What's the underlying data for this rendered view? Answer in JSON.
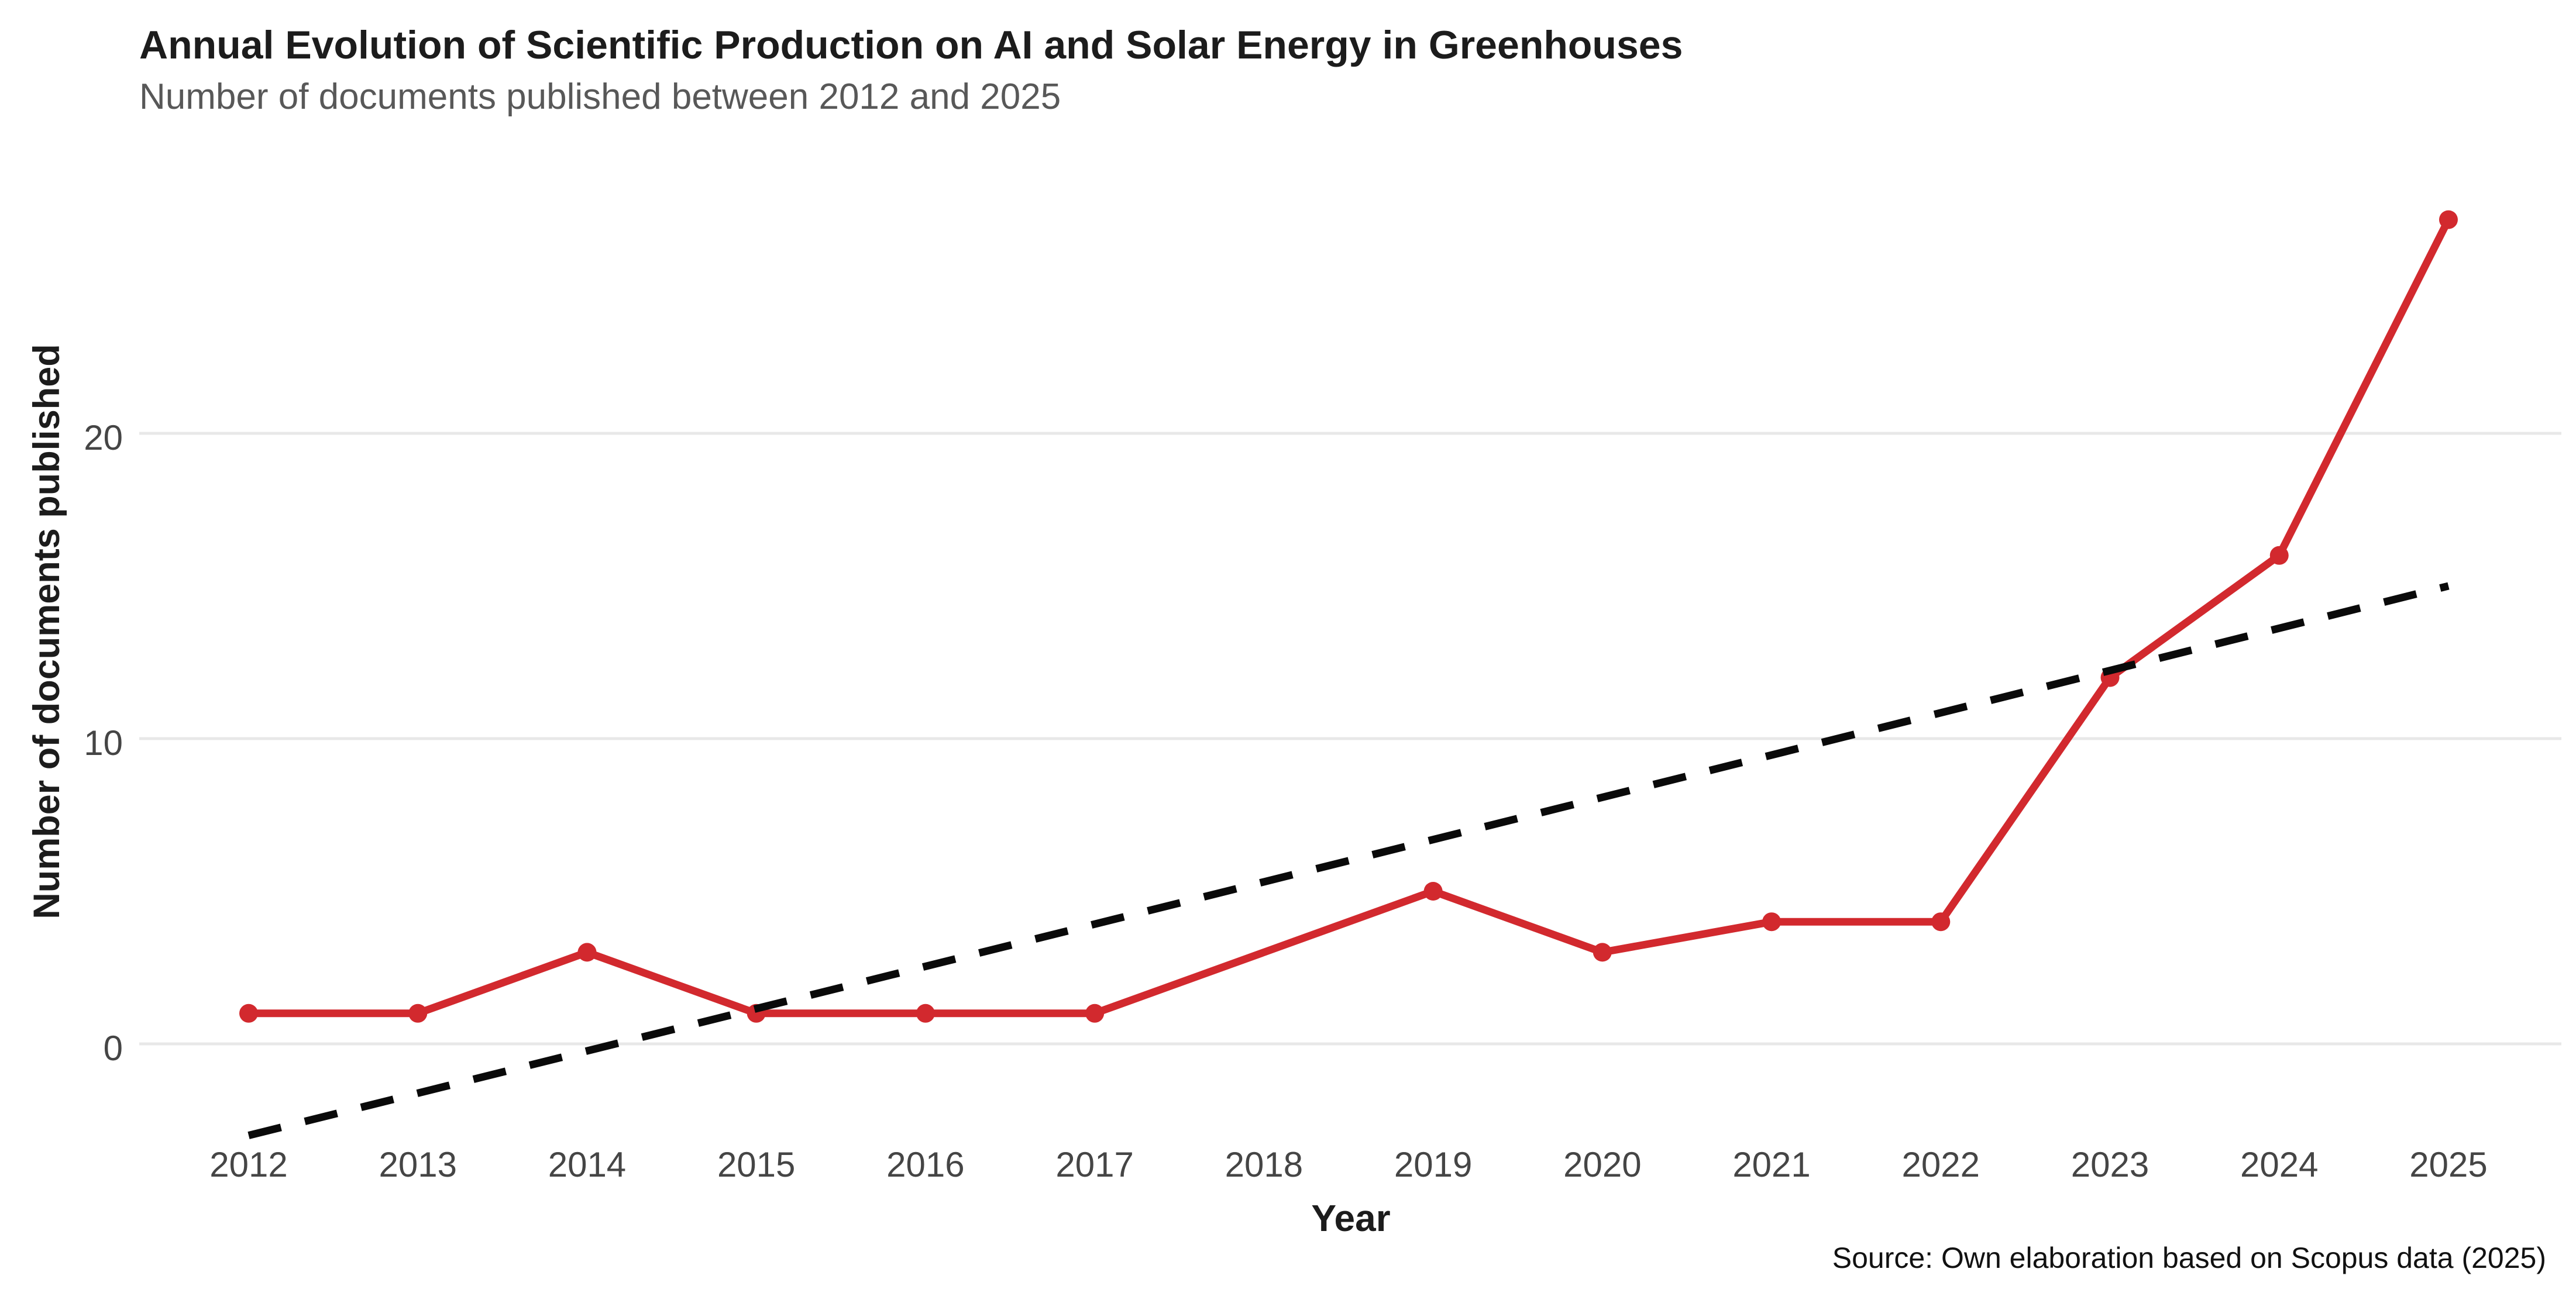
{
  "header": {
    "title": "Annual Evolution of Scientific Production on AI and Solar Energy in Greenhouses",
    "subtitle": "Number of documents published between 2012 and 2025"
  },
  "axes": {
    "x_label": "Year",
    "y_label": "Number of documents published"
  },
  "footer": {
    "source": "Source: Own elaboration based on Scopus data (2025)"
  },
  "colors": {
    "series_red": "#d2292e",
    "trend_black": "#0a0a0a",
    "gridline": "#e8e8e8",
    "tick_text": "#454545",
    "title_text": "#1c1c1c",
    "subtitle_text": "#585858",
    "background": "#ffffff"
  },
  "chart_data": {
    "type": "line",
    "title": "Annual Evolution of Scientific Production on AI and Solar Energy in Greenhouses",
    "subtitle": "Number of documents published between 2012 and 2025",
    "xlabel": "Year",
    "ylabel": "Number of documents published",
    "caption": "Source: Own elaboration based on Scopus data (2025)",
    "x_ticks": [
      2012,
      2013,
      2014,
      2015,
      2016,
      2017,
      2018,
      2019,
      2020,
      2021,
      2022,
      2023,
      2024,
      2025
    ],
    "y_ticks": [
      0,
      10,
      20
    ],
    "xlim": [
      2011.35,
      2025.65
    ],
    "ylim": [
      -4.5,
      28.5
    ],
    "grid": "horizontal-major-only",
    "legend": "none",
    "series": [
      {
        "name": "Documents published",
        "color": "#d2292e",
        "dashed": false,
        "markers": true,
        "points": [
          [
            2012,
            1
          ],
          [
            2013,
            1
          ],
          [
            2014,
            3
          ],
          [
            2015,
            1
          ],
          [
            2016,
            1
          ],
          [
            2017,
            1
          ],
          [
            2019,
            5
          ],
          [
            2020,
            3
          ],
          [
            2021,
            4
          ],
          [
            2022,
            4
          ],
          [
            2023,
            12
          ],
          [
            2024,
            16
          ],
          [
            2025,
            27
          ]
        ],
        "note": "no data point plotted for 2018; line connects 2017 directly to 2019"
      },
      {
        "name": "Linear trend",
        "color": "#0a0a0a",
        "dashed": true,
        "markers": false,
        "points": [
          [
            2012,
            -3
          ],
          [
            2025,
            15
          ]
        ]
      }
    ]
  }
}
